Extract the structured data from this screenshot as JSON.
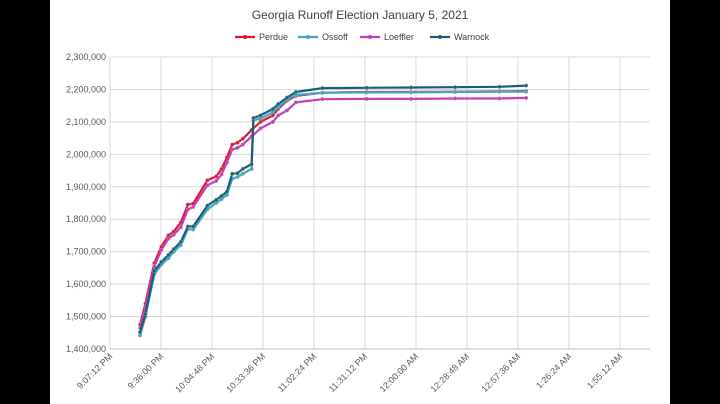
{
  "chart_data": {
    "type": "line",
    "title": "Georgia Runoff Election January 5, 2021",
    "xlabel": "",
    "ylabel": "",
    "ylim": [
      1400000,
      2300000
    ],
    "yticks": [
      "1,400,000",
      "1,500,000",
      "1,600,000",
      "1,700,000",
      "1,800,000",
      "1,900,000",
      "2,000,000",
      "2,100,000",
      "2,200,000",
      "2,300,000"
    ],
    "xticks": [
      "9:07:12 PM",
      "9:36:00 PM",
      "10:04:48 PM",
      "10:33:36 PM",
      "11:02:24 PM",
      "11:31:12 PM",
      "12:00:00 AM",
      "12:28:48 AM",
      "12:57:36 AM",
      "1:26:24 AM",
      "1:55:12 AM"
    ],
    "xtick_minutes": [
      0,
      28.8,
      57.6,
      86.4,
      115.2,
      144,
      172.8,
      201.6,
      230.4,
      259.2,
      288
    ],
    "x_range_minutes": [
      0,
      305
    ],
    "grid": true,
    "legend_position": "top",
    "series": [
      {
        "name": "Perdue",
        "color": "#e0162b",
        "points": [
          [
            17,
            1475000
          ],
          [
            20,
            1540000
          ],
          [
            25,
            1665000
          ],
          [
            29,
            1715000
          ],
          [
            33,
            1750000
          ],
          [
            36,
            1762000
          ],
          [
            40,
            1790000
          ],
          [
            44,
            1845000
          ],
          [
            47,
            1848000
          ],
          [
            55,
            1920000
          ],
          [
            60,
            1932000
          ],
          [
            63,
            1955000
          ],
          [
            66,
            1990000
          ],
          [
            69,
            2030000
          ],
          [
            72,
            2036000
          ],
          [
            75,
            2048000
          ],
          [
            80,
            2075000
          ],
          [
            85,
            2100000
          ],
          [
            92,
            2120000
          ],
          [
            95,
            2140000
          ],
          [
            100,
            2165000
          ],
          [
            105,
            2180000
          ],
          [
            120,
            2190000
          ],
          [
            145,
            2192000
          ],
          [
            170,
            2192000
          ],
          [
            195,
            2193000
          ],
          [
            220,
            2194000
          ],
          [
            235,
            2195000
          ]
        ]
      },
      {
        "name": "Ossoff",
        "color": "#3fa7c4",
        "points": [
          [
            17,
            1442000
          ],
          [
            20,
            1500000
          ],
          [
            25,
            1630000
          ],
          [
            29,
            1660000
          ],
          [
            33,
            1680000
          ],
          [
            36,
            1700000
          ],
          [
            40,
            1720000
          ],
          [
            44,
            1770000
          ],
          [
            47,
            1768000
          ],
          [
            55,
            1830000
          ],
          [
            60,
            1850000
          ],
          [
            63,
            1862000
          ],
          [
            66,
            1875000
          ],
          [
            69,
            1925000
          ],
          [
            72,
            1930000
          ],
          [
            75,
            1940000
          ],
          [
            80,
            1955000
          ],
          [
            81,
            2105000
          ],
          [
            85,
            2110000
          ],
          [
            92,
            2130000
          ],
          [
            95,
            2145000
          ],
          [
            100,
            2168000
          ],
          [
            105,
            2183000
          ],
          [
            120,
            2190000
          ],
          [
            145,
            2191000
          ],
          [
            170,
            2191000
          ],
          [
            195,
            2192000
          ],
          [
            220,
            2193000
          ],
          [
            235,
            2193000
          ]
        ]
      },
      {
        "name": "Loeffler",
        "color": "#c53cbf",
        "points": [
          [
            17,
            1465000
          ],
          [
            20,
            1530000
          ],
          [
            25,
            1655000
          ],
          [
            29,
            1705000
          ],
          [
            33,
            1740000
          ],
          [
            36,
            1752000
          ],
          [
            40,
            1775000
          ],
          [
            44,
            1830000
          ],
          [
            47,
            1838000
          ],
          [
            55,
            1905000
          ],
          [
            60,
            1918000
          ],
          [
            63,
            1938000
          ],
          [
            66,
            1975000
          ],
          [
            69,
            2015000
          ],
          [
            72,
            2020000
          ],
          [
            75,
            2030000
          ],
          [
            80,
            2055000
          ],
          [
            85,
            2080000
          ],
          [
            92,
            2100000
          ],
          [
            95,
            2120000
          ],
          [
            100,
            2135000
          ],
          [
            105,
            2160000
          ],
          [
            120,
            2170000
          ],
          [
            145,
            2171000
          ],
          [
            170,
            2171000
          ],
          [
            195,
            2172000
          ],
          [
            220,
            2172000
          ],
          [
            235,
            2174000
          ]
        ]
      },
      {
        "name": "Warnock",
        "color": "#1a5d75",
        "points": [
          [
            17,
            1452000
          ],
          [
            20,
            1508000
          ],
          [
            25,
            1640000
          ],
          [
            29,
            1668000
          ],
          [
            33,
            1690000
          ],
          [
            36,
            1708000
          ],
          [
            40,
            1730000
          ],
          [
            44,
            1778000
          ],
          [
            47,
            1778000
          ],
          [
            55,
            1842000
          ],
          [
            60,
            1860000
          ],
          [
            63,
            1872000
          ],
          [
            66,
            1885000
          ],
          [
            69,
            1940000
          ],
          [
            72,
            1942000
          ],
          [
            75,
            1955000
          ],
          [
            80,
            1970000
          ],
          [
            81,
            2112000
          ],
          [
            85,
            2120000
          ],
          [
            92,
            2140000
          ],
          [
            95,
            2155000
          ],
          [
            100,
            2175000
          ],
          [
            105,
            2192000
          ],
          [
            120,
            2204000
          ],
          [
            145,
            2205000
          ],
          [
            170,
            2206000
          ],
          [
            195,
            2207000
          ],
          [
            220,
            2208000
          ],
          [
            235,
            2212000
          ]
        ]
      }
    ]
  }
}
